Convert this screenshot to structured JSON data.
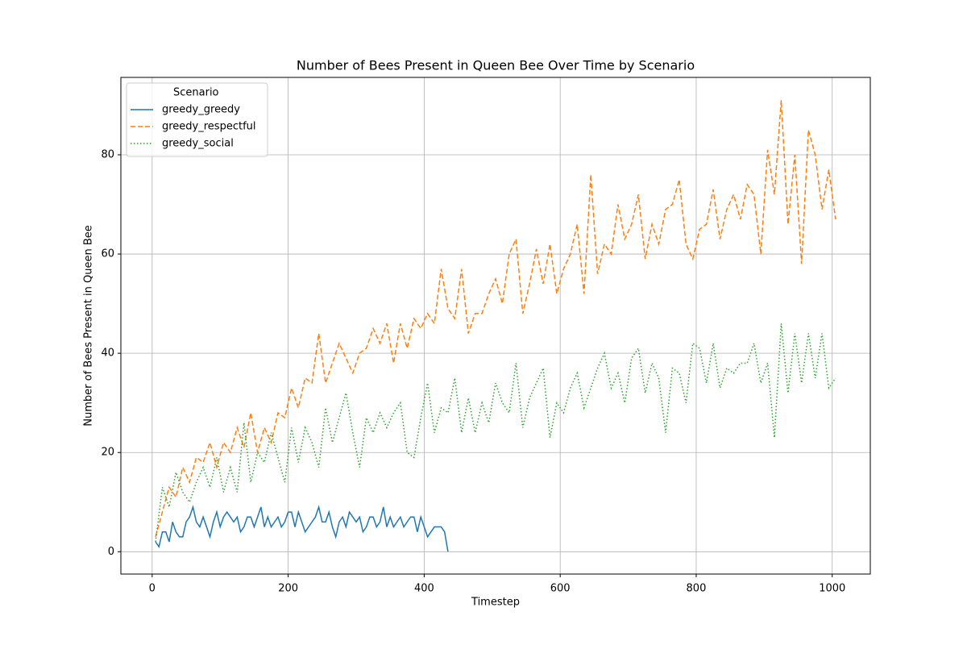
{
  "chart_data": {
    "type": "line",
    "title": "Number of Bees Present in Queen Bee Over Time by Scenario",
    "x_label": "Timestep",
    "y_label": "Number of Bees Present in Queen Bee",
    "legend_title": "Scenario",
    "legend_position": "upper left",
    "grid": true,
    "xlim": [
      -46,
      1056
    ],
    "ylim": [
      -4.5,
      95.6
    ],
    "xticks": [
      0,
      200,
      400,
      600,
      800,
      1000
    ],
    "yticks": [
      0,
      20,
      40,
      60,
      80
    ],
    "series": [
      {
        "name": "greedy_greedy",
        "color": "#1f77b4",
        "linestyle": "solid",
        "x": [
          5,
          10,
          15,
          20,
          25,
          30,
          35,
          40,
          45,
          50,
          55,
          60,
          65,
          70,
          75,
          80,
          85,
          90,
          95,
          100,
          105,
          110,
          115,
          120,
          125,
          130,
          135,
          140,
          145,
          150,
          155,
          160,
          165,
          170,
          175,
          180,
          185,
          190,
          195,
          200,
          205,
          210,
          215,
          220,
          225,
          230,
          235,
          240,
          245,
          250,
          255,
          260,
          265,
          270,
          275,
          280,
          285,
          290,
          295,
          300,
          305,
          310,
          315,
          320,
          325,
          330,
          335,
          340,
          345,
          350,
          355,
          360,
          365,
          370,
          375,
          380,
          385,
          390,
          395,
          400,
          405,
          410,
          415,
          420,
          425,
          430,
          435
        ],
        "values": [
          2,
          1,
          4,
          4,
          2,
          6,
          4,
          3,
          3,
          6,
          7,
          9,
          6,
          5,
          7,
          5,
          3,
          6,
          8,
          5,
          7,
          8,
          7,
          6,
          7,
          4,
          5,
          7,
          7,
          5,
          7,
          9,
          5,
          7,
          5,
          6,
          7,
          5,
          6,
          8,
          8,
          5,
          8,
          6,
          4,
          5,
          6,
          7,
          9,
          6,
          6,
          8,
          5,
          3,
          6,
          7,
          5,
          8,
          7,
          6,
          7,
          4,
          5,
          7,
          7,
          5,
          6,
          9,
          5,
          7,
          5,
          6,
          7,
          5,
          6,
          7,
          7,
          4,
          7,
          5,
          3,
          4,
          5,
          5,
          5,
          4,
          0
        ]
      },
      {
        "name": "greedy_respectful",
        "color": "#ff7f0e",
        "linestyle": "dashed",
        "x": [
          5,
          15,
          25,
          35,
          45,
          55,
          65,
          75,
          85,
          95,
          105,
          115,
          125,
          135,
          145,
          155,
          165,
          175,
          185,
          195,
          205,
          215,
          225,
          235,
          245,
          255,
          265,
          275,
          285,
          295,
          305,
          315,
          325,
          335,
          345,
          355,
          365,
          375,
          385,
          395,
          405,
          415,
          425,
          435,
          445,
          455,
          465,
          475,
          485,
          495,
          505,
          515,
          525,
          535,
          545,
          555,
          565,
          575,
          585,
          595,
          605,
          615,
          625,
          635,
          645,
          655,
          665,
          675,
          685,
          695,
          705,
          715,
          725,
          735,
          745,
          755,
          765,
          775,
          785,
          795,
          805,
          815,
          825,
          835,
          845,
          855,
          865,
          875,
          885,
          895,
          905,
          915,
          925,
          935,
          945,
          955,
          965,
          975,
          985,
          995,
          1005
        ],
        "values": [
          3,
          8,
          13,
          11,
          17,
          14,
          19,
          18,
          22,
          17,
          22,
          20,
          25,
          21,
          28,
          20,
          25,
          22,
          28,
          27,
          33,
          29,
          35,
          34,
          44,
          34,
          38,
          42,
          39,
          36,
          40,
          41,
          45,
          42,
          46,
          38,
          46,
          41,
          47,
          45,
          48,
          46,
          57,
          49,
          47,
          57,
          44,
          48,
          48,
          52,
          55,
          50,
          60,
          63,
          48,
          54,
          61,
          54,
          62,
          52,
          57,
          60,
          66,
          52,
          76,
          56,
          62,
          60,
          70,
          63,
          66,
          72,
          59,
          66,
          62,
          69,
          70,
          75,
          62,
          59,
          65,
          66,
          73,
          63,
          69,
          72,
          67,
          74,
          72,
          60,
          81,
          72,
          91,
          66,
          80,
          58,
          85,
          80,
          69,
          77,
          67
        ]
      },
      {
        "name": "greedy_social",
        "color": "#2ca02c",
        "linestyle": "dotted",
        "x": [
          5,
          15,
          25,
          35,
          45,
          55,
          65,
          75,
          85,
          95,
          105,
          115,
          125,
          135,
          145,
          155,
          165,
          175,
          185,
          195,
          205,
          215,
          225,
          235,
          245,
          255,
          265,
          275,
          285,
          295,
          305,
          315,
          325,
          335,
          345,
          355,
          365,
          375,
          385,
          395,
          405,
          415,
          425,
          435,
          445,
          455,
          465,
          475,
          485,
          495,
          505,
          515,
          525,
          535,
          545,
          555,
          565,
          575,
          585,
          595,
          605,
          615,
          625,
          635,
          645,
          655,
          665,
          675,
          685,
          695,
          705,
          715,
          725,
          735,
          745,
          755,
          765,
          775,
          785,
          795,
          805,
          815,
          825,
          835,
          845,
          855,
          865,
          875,
          885,
          895,
          905,
          915,
          925,
          935,
          945,
          955,
          965,
          975,
          985,
          995,
          1005
        ],
        "values": [
          2,
          13,
          9,
          16,
          12,
          10,
          14,
          17,
          13,
          19,
          12,
          17,
          12,
          26,
          14,
          20,
          18,
          24,
          19,
          14,
          25,
          18,
          25,
          22,
          17,
          29,
          22,
          27,
          32,
          24,
          17,
          27,
          24,
          28,
          25,
          28,
          30,
          20,
          19,
          27,
          34,
          24,
          29,
          28,
          35,
          24,
          31,
          24,
          30,
          26,
          34,
          30,
          28,
          38,
          25,
          31,
          34,
          37,
          23,
          30,
          28,
          33,
          36,
          29,
          33,
          37,
          40,
          33,
          36,
          30,
          39,
          41,
          32,
          38,
          35,
          24,
          37,
          36,
          30,
          42,
          41,
          34,
          42,
          33,
          37,
          36,
          38,
          38,
          42,
          34,
          38,
          23,
          46,
          32,
          44,
          34,
          44,
          35,
          44,
          33,
          35
        ]
      }
    ]
  }
}
